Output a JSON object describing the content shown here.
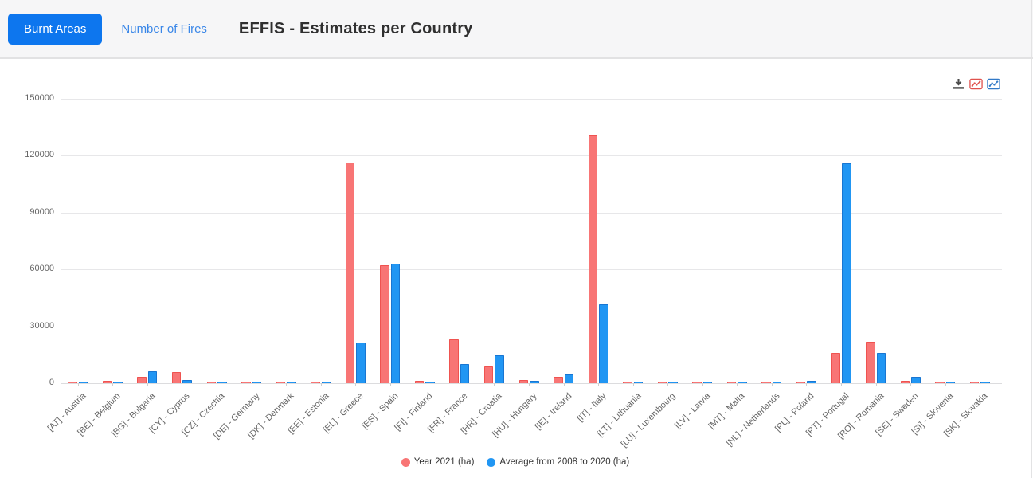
{
  "header": {
    "burnt_areas_label": "Burnt Areas",
    "number_of_fires_label": "Number of Fires",
    "title": "EFFIS - Estimates per Country"
  },
  "toolbar": {
    "download_icon": "download-icon",
    "red_chart_icon": "line-chart-red-icon",
    "blue_chart_icon": "line-chart-blue-icon"
  },
  "chart_data": {
    "type": "bar",
    "title": "EFFIS - Estimates per Country",
    "categories": [
      "[AT] - Austria",
      "[BE] - Belgium",
      "[BG] - Bulgaria",
      "[CY] - Cyprus",
      "[CZ] - Czechia",
      "[DE] - Germany",
      "[DK] - Denmark",
      "[EE] - Estonia",
      "[EL] - Greece",
      "[ES] - Spain",
      "[FI] - Finland",
      "[FR] - France",
      "[HR] - Croatia",
      "[HU] - Hungary",
      "[IE] - Ireland",
      "[IT] - Italy",
      "[LT] - Lithuania",
      "[LU] - Luxembourg",
      "[LV] - Latvia",
      "[MT] - Malta",
      "[NL] - Netherlands",
      "[PL] - Poland",
      "[PT] - Portugal",
      "[RO] - Romania",
      "[SE] - Sweden",
      "[SI] - Slovenia",
      "[SK] - Slovakia"
    ],
    "series": [
      {
        "name": "Year 2021 (ha)",
        "color": "#f87575",
        "border_color": "#ef5350",
        "values": [
          400,
          1100,
          3300,
          6000,
          400,
          700,
          700,
          300,
          116400,
          62000,
          1200,
          23300,
          8800,
          1500,
          3400,
          130700,
          800,
          300,
          800,
          300,
          500,
          600,
          16000,
          21700,
          1400,
          400,
          400
        ]
      },
      {
        "name": "Average from 2008 to 2020 (ha)",
        "color": "#2196f3",
        "border_color": "#1976d2",
        "values": [
          900,
          700,
          6500,
          1700,
          700,
          1000,
          400,
          600,
          21500,
          63200,
          700,
          10000,
          14600,
          1200,
          4700,
          41700,
          1000,
          400,
          800,
          500,
          800,
          1200,
          115800,
          16100,
          3400,
          500,
          600
        ]
      }
    ],
    "ylabel": "",
    "xlabel": "",
    "ylim": [
      0,
      150000
    ],
    "yticks": [
      0,
      30000,
      60000,
      90000,
      120000,
      150000
    ],
    "grid": true,
    "legend_position": "bottom"
  }
}
